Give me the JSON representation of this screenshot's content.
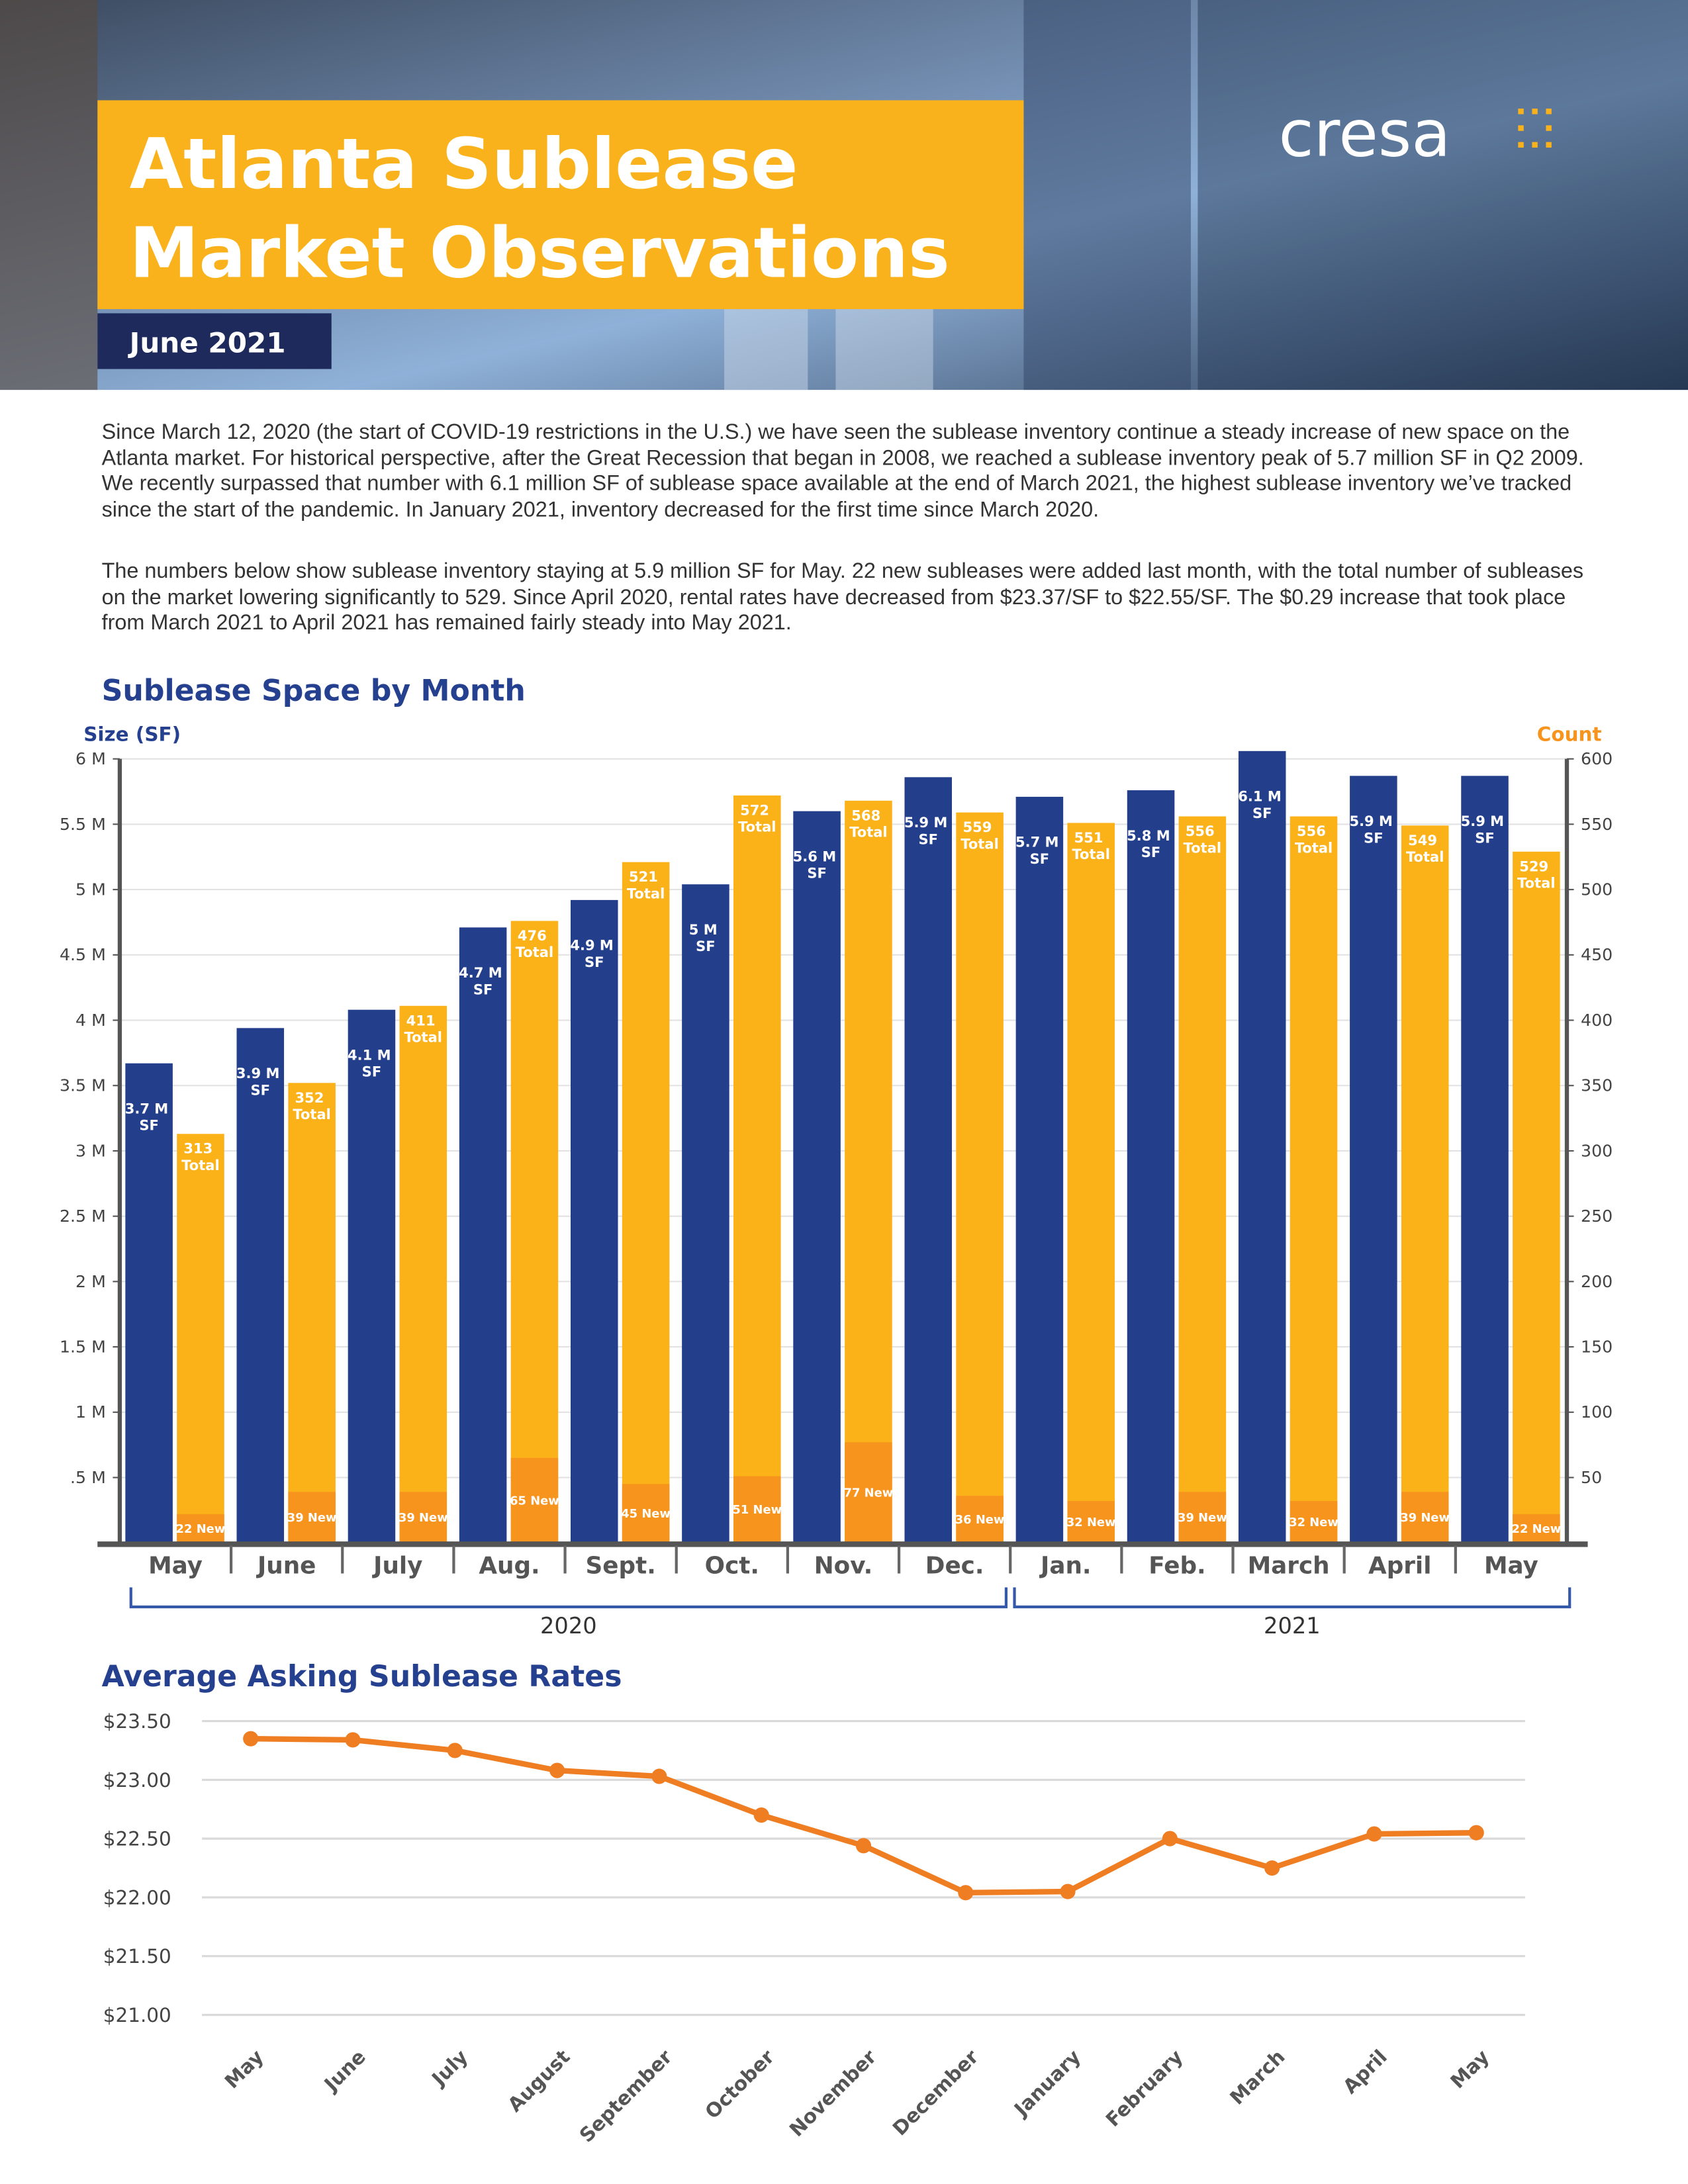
{
  "header": {
    "title_lines": [
      "Atlanta Sublease",
      "Market Observations"
    ],
    "date": "June 2021",
    "logo": "cresa"
  },
  "paragraphs": [
    "Since March 12, 2020 (the start of COVID-19 restrictions in the U.S.) we have seen the sublease inventory continue a steady increase of new space on the Atlanta market. For historical perspective, after the Great Recession that began in 2008, we reached a sublease inventory peak of 5.7 million SF in Q2 2009. We recently surpassed that number with 6.1 million SF of sublease space available at the end of March 2021, the highest sublease inventory we’ve tracked since the start of the pandemic. In January 2021, inventory decreased for the first time since March 2020.",
    "The numbers below show sublease inventory staying at 5.9 million SF for May. 22 new subleases were added last month, with the total number of subleases on the market lowering significantly to 529. Since April 2020, rental rates have decreased from $23.37/SF to $22.55/SF. The $0.29 increase that took place from March 2021 to April 2021 has remained fairly steady into May 2021."
  ],
  "chart_data": [
    {
      "type": "bar",
      "title": "Sublease Space by Month",
      "y_label": "Size (SF)",
      "y2_label": "Count",
      "groups": [
        {
          "label": "2020",
          "categories": [
            "May",
            "June",
            "July",
            "Aug.",
            "Sept.",
            "Oct.",
            "Nov.",
            "Dec."
          ]
        },
        {
          "label": "2021",
          "categories": [
            "Jan.",
            "Feb.",
            "March",
            "April",
            "May"
          ]
        }
      ],
      "series": [
        {
          "color": "#233f8c",
          "axis": "y",
          "values": [
            3.67,
            3.94,
            4.08,
            4.71,
            4.92,
            5.04,
            5.6,
            5.86,
            5.71,
            5.76,
            6.06,
            5.87,
            5.87
          ],
          "value_labels": [
            "3.7 M SF",
            "3.9 M SF",
            "4.1 M SF",
            "4.7 M SF",
            "4.9 M SF",
            "5 M SF",
            "5.6 M SF",
            "5.9 M SF",
            "5.7 M SF",
            "5.8 M SF",
            "6.1 M SF",
            "5.9 M SF",
            "5.9 M SF"
          ]
        },
        {
          "color": "#fbb118",
          "axis": "y2",
          "values": [
            313,
            352,
            411,
            476,
            521,
            572,
            568,
            559,
            551,
            556,
            556,
            549,
            529
          ],
          "value_labels": [
            "313 Total",
            "352 Total",
            "411 Total",
            "476 Total",
            "521 Total",
            "572 Total",
            "568 Total",
            "559 Total",
            "551 Total",
            "556 Total",
            "556 Total",
            "549 Total",
            "529 Total"
          ]
        },
        {
          "color": "#f7941d",
          "axis": "y2",
          "values": [
            22,
            39,
            39,
            65,
            45,
            51,
            77,
            36,
            32,
            39,
            32,
            39,
            22
          ],
          "value_labels": [
            "22 New",
            "39 New",
            "39 New",
            "65 New",
            "45 New",
            "51 New",
            "77 New",
            "36 New",
            "32 New",
            "39 New",
            "32 New",
            "39 New",
            "22 New"
          ]
        }
      ],
      "ylim": [
        0,
        6
      ],
      "yticks": [
        {
          "value": 0.5,
          "label": ".5 M"
        },
        {
          "value": 1,
          "label": "1 M"
        },
        {
          "value": 1.5,
          "label": "1.5 M"
        },
        {
          "value": 2,
          "label": "2 M"
        },
        {
          "value": 2.5,
          "label": "2.5 M"
        },
        {
          "value": 3,
          "label": "3 M"
        },
        {
          "value": 3.5,
          "label": "3.5 M"
        },
        {
          "value": 4,
          "label": "4 M"
        },
        {
          "value": 4.5,
          "label": "4.5 M"
        },
        {
          "value": 5,
          "label": "5 M"
        },
        {
          "value": 5.5,
          "label": "5.5 M"
        },
        {
          "value": 6,
          "label": "6 M"
        }
      ],
      "y2lim": [
        0,
        600
      ],
      "y2ticks": [
        50,
        100,
        150,
        200,
        250,
        300,
        350,
        400,
        450,
        500,
        550,
        600
      ],
      "grid": true
    },
    {
      "type": "line",
      "title": "Average Asking Sublease Rates",
      "categories": [
        "May",
        "June",
        "July",
        "August",
        "September",
        "October",
        "November",
        "December",
        "January",
        "February",
        "March",
        "April",
        "May"
      ],
      "values": [
        23.35,
        23.34,
        23.25,
        23.08,
        23.03,
        22.7,
        22.44,
        22.04,
        22.05,
        22.5,
        22.25,
        22.54,
        22.55
      ],
      "color": "#ef7d22",
      "ylim": [
        21,
        23.5
      ],
      "yticks": [
        {
          "value": 21,
          "label": "$21.00"
        },
        {
          "value": 21.5,
          "label": "$21.50"
        },
        {
          "value": 22,
          "label": "$22.00"
        },
        {
          "value": 22.5,
          "label": "$22.50"
        },
        {
          "value": 23,
          "label": "$23.00"
        },
        {
          "value": 23.5,
          "label": "$23.50"
        }
      ],
      "grid": true
    }
  ]
}
